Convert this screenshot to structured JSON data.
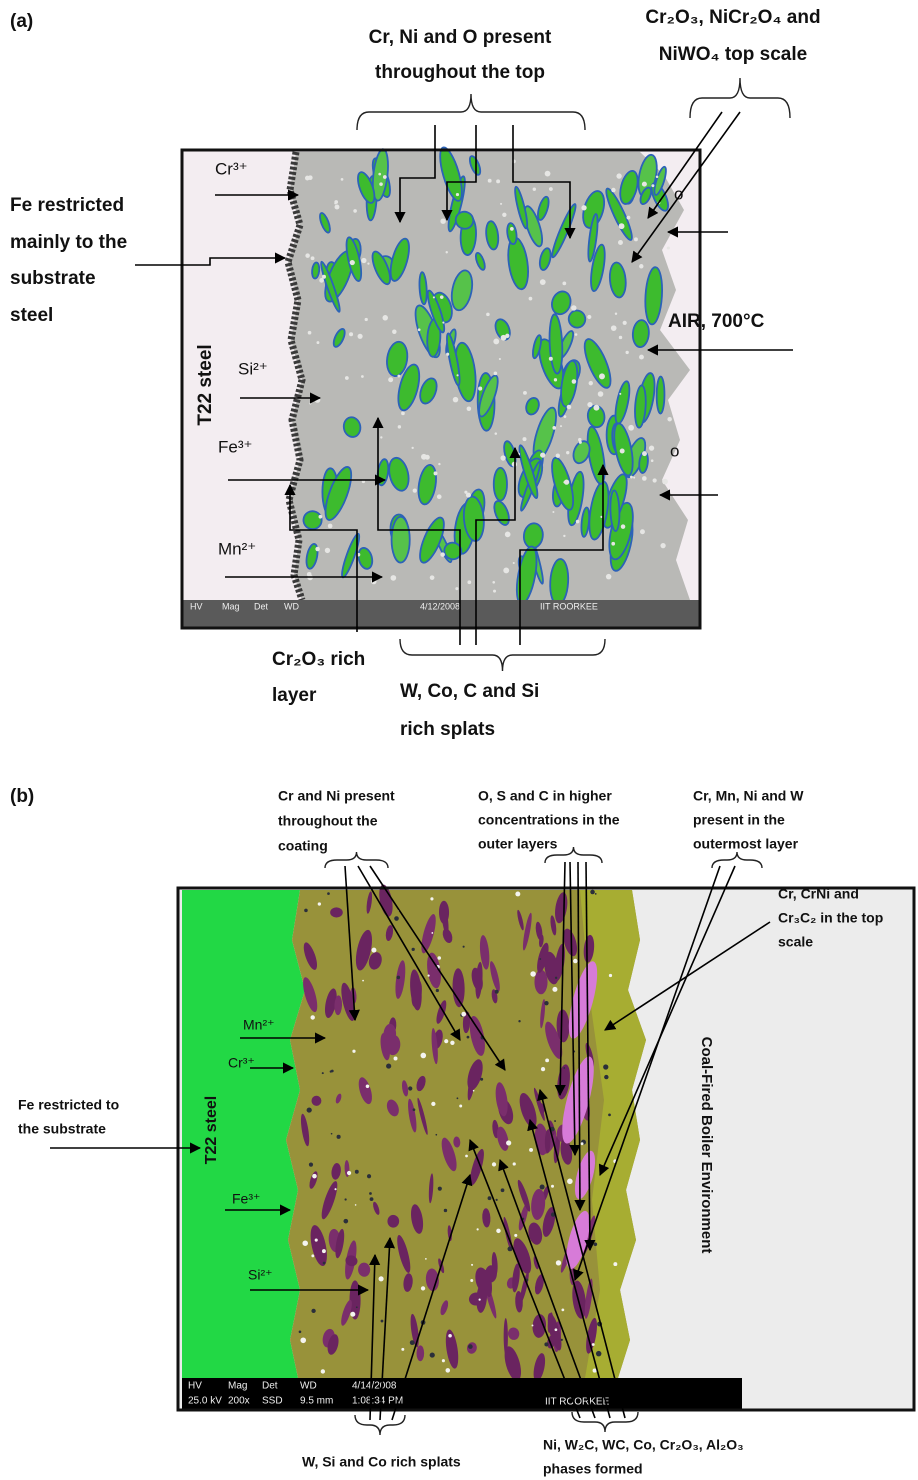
{
  "panel_a": {
    "label": "(a)",
    "image_labels": {
      "cr": "Cr³⁺",
      "si": "Si²⁺",
      "fe": "Fe³⁺",
      "mn": "Mn²⁺",
      "steel": "T22 steel",
      "o_top": "o",
      "o_bottom": "o",
      "environment": "AIR, 700°C"
    },
    "databar": [
      "HV",
      "Mag",
      "Det",
      "WD",
      "4/12/2008",
      "IIT ROORKEE"
    ],
    "annotations": {
      "top_center": [
        "Cr, Ni and O present",
        "throughout the top"
      ],
      "top_right": [
        "Cr₂O₃, NiCr₂O₄ and",
        "NiWO₄ top scale"
      ],
      "left": [
        "Fe  restricted",
        "mainly to the",
        "substrate",
        "steel"
      ],
      "bottom_left": [
        "Cr₂O₃ rich",
        "layer"
      ],
      "bottom_center": [
        "W, Co, C and Si",
        "rich splats"
      ]
    }
  },
  "panel_b": {
    "label": "(b)",
    "image_labels": {
      "mn": "Mn²⁺",
      "cr": "Cr³⁺",
      "fe": "Fe³⁺",
      "si": "Si²⁺",
      "steel": "T22 steel",
      "environment": "Coal-Fired Boiler Environment"
    },
    "databar": [
      [
        "HV",
        "25.0 kV"
      ],
      [
        "Mag",
        "200x"
      ],
      [
        "Det",
        "SSD"
      ],
      [
        "WD",
        "9.5 mm"
      ],
      [
        "4/14/2008",
        "1:08:34 PM"
      ]
    ],
    "databar_footer": "IIT ROORKEE",
    "annotations": {
      "top_left": [
        "Cr and Ni present",
        "throughout     the",
        "coating"
      ],
      "top_middle": [
        "O, S and C in higher",
        "concentrations in the",
        "outer layers"
      ],
      "top_right": [
        "Cr, Mn, Ni and W",
        "present   in   the",
        "outermost layer"
      ],
      "right": [
        "Cr,   CrNi   and",
        "Cr₃C₂ in the top",
        "scale"
      ],
      "left": [
        "Fe restricted to",
        "the substrate"
      ],
      "bottom_left": [
        "W, Si and Co rich splats"
      ],
      "bottom_right": [
        "Ni, W₂C, WC, Co, Cr₂O₃, Al₂O₃",
        "phases formed"
      ]
    }
  }
}
